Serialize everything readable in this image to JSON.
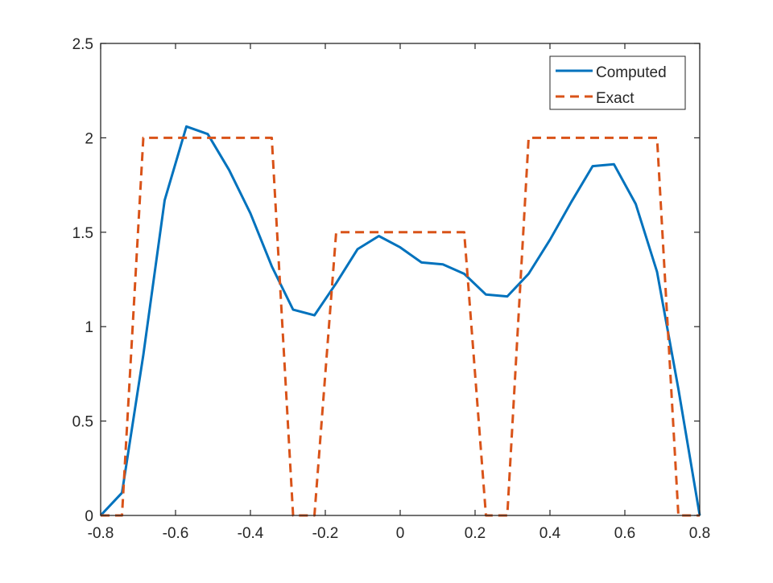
{
  "chart_data": {
    "type": "line",
    "title": "",
    "xlabel": "",
    "ylabel": "",
    "xlim": [
      -0.8,
      0.8
    ],
    "ylim": [
      0,
      2.5
    ],
    "xticks": [
      -0.8,
      -0.6,
      -0.4,
      -0.2,
      0,
      0.2,
      0.4,
      0.6,
      0.8
    ],
    "xtick_labels": [
      "-0.8",
      "-0.6",
      "-0.4",
      "-0.2",
      "0",
      "0.2",
      "0.4",
      "0.6",
      "0.8"
    ],
    "yticks": [
      0,
      0.5,
      1,
      1.5,
      2,
      2.5
    ],
    "ytick_labels": [
      "0",
      "0.5",
      "1",
      "1.5",
      "2",
      "2.5"
    ],
    "grid": false,
    "legend_position": "top-right",
    "series": [
      {
        "name": "Computed",
        "color": "#0072BD",
        "style": "solid",
        "x": [
          -0.8,
          -0.743,
          -0.686,
          -0.629,
          -0.571,
          -0.514,
          -0.457,
          -0.4,
          -0.343,
          -0.286,
          -0.229,
          -0.171,
          -0.114,
          -0.057,
          0.0,
          0.057,
          0.114,
          0.171,
          0.229,
          0.286,
          0.343,
          0.4,
          0.457,
          0.514,
          0.571,
          0.629,
          0.686,
          0.743,
          0.8
        ],
        "y": [
          0.0,
          0.12,
          0.85,
          1.67,
          2.06,
          2.02,
          1.83,
          1.6,
          1.32,
          1.09,
          1.06,
          1.23,
          1.41,
          1.48,
          1.42,
          1.34,
          1.33,
          1.28,
          1.17,
          1.16,
          1.28,
          1.46,
          1.66,
          1.85,
          1.86,
          1.65,
          1.29,
          0.67,
          0.0
        ]
      },
      {
        "name": "Exact",
        "color": "#D95319",
        "style": "dashed",
        "x": [
          -0.8,
          -0.743,
          -0.686,
          -0.343,
          -0.286,
          -0.229,
          -0.171,
          0.171,
          0.229,
          0.286,
          0.343,
          0.686,
          0.743,
          0.8
        ],
        "y": [
          0,
          0,
          2,
          2,
          0,
          0,
          1.5,
          1.5,
          0,
          0,
          2,
          2,
          0,
          0
        ]
      }
    ]
  }
}
